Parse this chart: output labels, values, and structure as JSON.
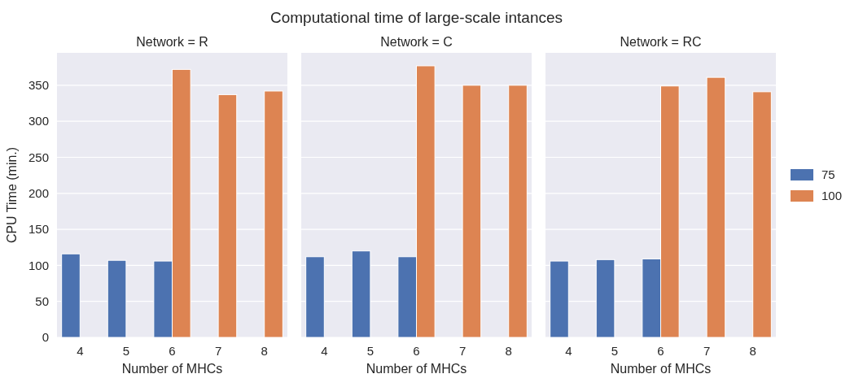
{
  "chart_data": [
    {
      "type": "bar",
      "subtitle": "Network = R",
      "xlabel": "Number of MHCs",
      "ylabel": "CPU Time (min.)",
      "categories": [
        "4",
        "5",
        "6",
        "7",
        "8"
      ],
      "series": [
        {
          "color": "#4c72b0",
          "values": [
            116,
            107,
            106,
            null,
            null
          ]
        },
        {
          "color": "#dd8452",
          "values": [
            null,
            null,
            372,
            337,
            342
          ]
        }
      ],
      "ylim": [
        0,
        395
      ],
      "yticks": [
        0,
        50,
        100,
        150,
        200,
        250,
        300,
        350
      ],
      "grid": "y",
      "legend": false
    },
    {
      "type": "bar",
      "title": "Computational time of large-scale intances",
      "subtitle": "Network = C",
      "xlabel": "Number of MHCs",
      "categories": [
        "4",
        "5",
        "6",
        "7",
        "8"
      ],
      "series": [
        {
          "color": "#4c72b0",
          "values": [
            112,
            120,
            112,
            null,
            null
          ]
        },
        {
          "color": "#dd8452",
          "values": [
            null,
            null,
            377,
            350,
            350
          ]
        }
      ],
      "ylim": [
        0,
        395
      ],
      "yticks": [
        0,
        50,
        100,
        150,
        200,
        250,
        300,
        350
      ],
      "grid": "y",
      "legend": false,
      "tick_labels": "x"
    },
    {
      "type": "bar",
      "subtitle": "Network = RC",
      "xlabel": "Number of MHCs",
      "categories": [
        "4",
        "5",
        "6",
        "7",
        "8"
      ],
      "series": [
        {
          "name": "75",
          "color": "#4c72b0",
          "values": [
            106,
            108,
            109,
            null,
            null
          ]
        },
        {
          "name": "100",
          "color": "#dd8452",
          "values": [
            null,
            null,
            349,
            361,
            341
          ]
        }
      ],
      "ylim": [
        0,
        395
      ],
      "yticks": [
        0,
        50,
        100,
        150,
        200,
        250,
        300,
        350
      ],
      "grid": "y",
      "legend": "right",
      "tick_labels": "x"
    }
  ]
}
